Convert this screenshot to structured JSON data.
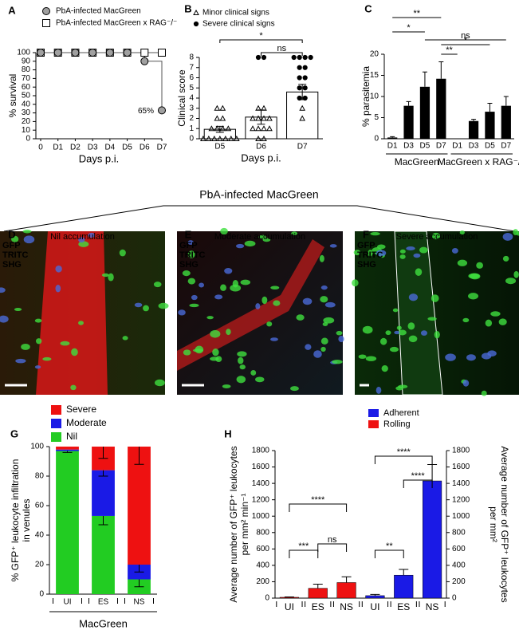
{
  "banner": "PbA-infected MacGreen",
  "images": [
    {
      "letter": "D",
      "title": "Nil accumulation",
      "channels": [
        "GFP",
        "TRITC",
        "SHG"
      ]
    },
    {
      "letter": "E",
      "title": "Moderate accumulation",
      "channels": [
        "GFP",
        "TRITC",
        "SHG"
      ]
    },
    {
      "letter": "F",
      "title": "Severe accumulation",
      "channels": [
        "GFP",
        "TRITC",
        "SHG"
      ]
    }
  ],
  "chart_data": [
    {
      "type": "survival",
      "letter": "A",
      "categories": [
        "0",
        "D1",
        "D2",
        "D3",
        "D4",
        "D5",
        "D6",
        "D7"
      ],
      "xlabel": "Days p.i.",
      "ylabel": "% survival",
      "ylim": [
        0,
        100
      ],
      "yticks": [
        0,
        10,
        20,
        30,
        40,
        50,
        60,
        70,
        80,
        90,
        100
      ],
      "series": [
        {
          "name": "PbA-infected MacGreen x RAG⁻/⁻",
          "color": "#ffffff",
          "marker": "square",
          "values": [
            100,
            100,
            100,
            100,
            100,
            100,
            100,
            100
          ]
        },
        {
          "name": "PbA-infected MacGreen",
          "color": "#a0a0a0",
          "marker": "circle",
          "values": [
            100,
            100,
            100,
            100,
            100,
            100,
            90,
            33
          ]
        }
      ],
      "annotations": [
        "65%"
      ]
    },
    {
      "type": "dotbar",
      "letter": "B",
      "categories": [
        "D5",
        "D6",
        "D7"
      ],
      "xlabel": "Days p.i.",
      "ylabel": "Clinical score",
      "ylim": [
        0,
        8
      ],
      "yticks": [
        0,
        1,
        2,
        3,
        4,
        5,
        6,
        7,
        8
      ],
      "values": [
        0.93,
        2.13,
        4.6
      ],
      "errors": [
        0.3,
        0.7,
        0.75
      ],
      "points": [
        {
          "name": "Minor clinical signs",
          "marker": "triangle",
          "values": [
            [
              3,
              3,
              2,
              2,
              1,
              1,
              1,
              1,
              0,
              0,
              0,
              0,
              0,
              0,
              0
            ],
            [
              3,
              3,
              2,
              2,
              2,
              2,
              1,
              1,
              1,
              1,
              0,
              0
            ],
            [
              3,
              2
            ]
          ]
        },
        {
          "name": "Severe clinical signs",
          "marker": "dot",
          "values": [
            [],
            [
              8,
              8
            ],
            [
              8,
              8,
              8,
              8,
              7,
              7,
              6,
              6,
              5,
              5,
              4,
              4
            ]
          ]
        }
      ],
      "significance": [
        {
          "label": "*",
          "from": 0,
          "to": 2
        },
        {
          "label": "ns",
          "from": 1,
          "to": 2
        }
      ]
    },
    {
      "type": "bar",
      "letter": "C",
      "categories": [
        "D1",
        "D3",
        "D5",
        "D7",
        "D1",
        "D3",
        "D5",
        "D7"
      ],
      "ylabel": "% parasitemia",
      "ylim": [
        0,
        20
      ],
      "yticks": [
        0,
        5,
        10,
        15,
        20
      ],
      "color": "#000000",
      "values": [
        0.3,
        7.8,
        12.3,
        14.2,
        0,
        4.2,
        6.4,
        7.8
      ],
      "errors": [
        0.2,
        1.0,
        3.5,
        4.0,
        0,
        0.4,
        2.0,
        2.2
      ],
      "groups": [
        {
          "label": "MacGreen",
          "from": 0,
          "to": 3
        },
        {
          "label": "MacGreen x RAG⁻/⁻",
          "from": 4,
          "to": 7
        }
      ],
      "significance": [
        {
          "label": "**",
          "from": 0,
          "to": 3
        },
        {
          "label": "*",
          "from": 0,
          "to": 2
        },
        {
          "label": "ns",
          "from": 2,
          "to": 7
        },
        {
          "label": "*",
          "from": 3,
          "to": 6
        },
        {
          "label": "**",
          "from": 3,
          "to": 4
        }
      ]
    },
    {
      "type": "stacked_bar",
      "letter": "G",
      "categories": [
        "UI",
        "ES",
        "NS"
      ],
      "xlabel": "MacGreen",
      "ylabel": [
        "% GFP⁺ leukocyte infiltration",
        "in venules"
      ],
      "ylim": [
        0,
        100
      ],
      "yticks": [
        0,
        20,
        40,
        60,
        80,
        100
      ],
      "series": [
        {
          "name": "Nil",
          "color": "#22cc22",
          "values": [
            97,
            53,
            10
          ],
          "errors": [
            1,
            6,
            5
          ]
        },
        {
          "name": "Moderate",
          "color": "#1a1ae6",
          "values": [
            1,
            31,
            10
          ],
          "errors": [
            0,
            4,
            5
          ]
        },
        {
          "name": "Severe",
          "color": "#ee1111",
          "values": [
            2,
            16,
            80
          ],
          "errors": [
            0,
            8,
            12
          ]
        }
      ]
    },
    {
      "type": "dual_bar",
      "letter": "H",
      "categories": [
        "UI",
        "ES",
        "NS",
        "UI",
        "ES",
        "NS"
      ],
      "ylabel": [
        "Average number of GFP⁺ leukocytes",
        "per mm² min⁻¹"
      ],
      "y2label": [
        "Average number of GFP⁺ leukocytes",
        "per mm²"
      ],
      "ylim": [
        0,
        1800
      ],
      "yticks": [
        0,
        200,
        400,
        600,
        800,
        1000,
        1200,
        1400,
        1600,
        1800
      ],
      "y2lim": [
        0,
        1800
      ],
      "y2ticks": [
        0,
        200,
        400,
        600,
        800,
        1000,
        1200,
        1400,
        1600,
        1800
      ],
      "series": [
        {
          "name": "Adherent",
          "color": "#1a1ae6",
          "axis": "y2",
          "values": [
            null,
            null,
            null,
            30,
            280,
            1430
          ],
          "errors": [
            null,
            null,
            null,
            15,
            70,
            200
          ]
        },
        {
          "name": "Rolling",
          "color": "#ee1111",
          "axis": "y",
          "values": [
            10,
            120,
            190,
            null,
            null,
            null
          ],
          "errors": [
            5,
            50,
            70,
            null,
            null,
            null
          ]
        }
      ],
      "significance": [
        {
          "label": "***",
          "from": 0,
          "to": 1
        },
        {
          "label": "ns",
          "from": 1,
          "to": 2
        },
        {
          "label": "****",
          "from": 0,
          "to": 2
        },
        {
          "label": "**",
          "from": 3,
          "to": 4
        },
        {
          "label": "****",
          "from": 3,
          "to": 5
        },
        {
          "label": "****",
          "from": 4,
          "to": 5
        }
      ]
    }
  ]
}
